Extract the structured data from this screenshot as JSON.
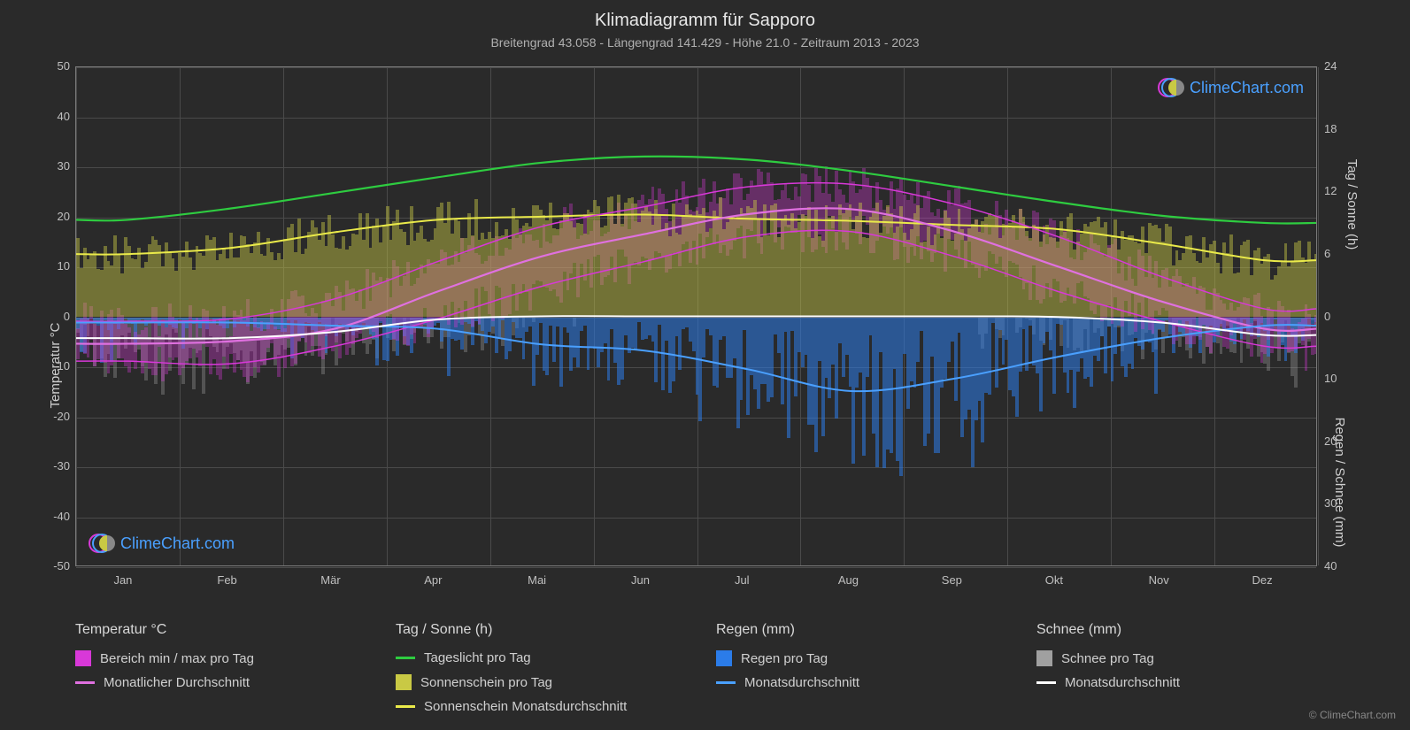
{
  "title": "Klimadiagramm für Sapporo",
  "subtitle": "Breitengrad 43.058 - Längengrad 141.429 - Höhe 21.0 - Zeitraum 2013 - 2023",
  "axis_labels": {
    "left": "Temperatur °C",
    "right_top": "Tag / Sonne (h)",
    "right_bottom": "Regen / Schnee (mm)"
  },
  "months": [
    "Jan",
    "Feb",
    "Mär",
    "Apr",
    "Mai",
    "Jun",
    "Jul",
    "Aug",
    "Sep",
    "Okt",
    "Nov",
    "Dez"
  ],
  "y_left": {
    "min": -50,
    "max": 50,
    "step": 10
  },
  "y_right_hours": {
    "min": 0,
    "max": 24,
    "step": 6,
    "ticks": [
      0,
      6,
      12,
      18,
      24
    ]
  },
  "y_right_precip": {
    "min": 0,
    "max": 40,
    "step": 10,
    "ticks": [
      0,
      10,
      20,
      30,
      40
    ]
  },
  "colors": {
    "background": "#2a2a2a",
    "grid": "#4a4a4a",
    "border": "#7a7a7a",
    "text": "#d0d0d0",
    "temp_range_fill": "#d838d8",
    "temp_avg_line": "#e070e0",
    "daylight_line": "#2ecc40",
    "sunshine_fill": "#c9c944",
    "sunshine_avg_line": "#eaea4a",
    "rain_fill": "#2b7ce9",
    "rain_avg_line": "#4aa0ff",
    "snow_fill": "#a0a0a0",
    "snow_avg_line": "#ffffff",
    "logo_text": "#4aa0ff",
    "logo_ring1": "#d838d8",
    "logo_ring2": "#4aa0ff"
  },
  "series": {
    "daylight_hours_monthly": [
      9.3,
      10.4,
      11.9,
      13.4,
      14.8,
      15.4,
      15.1,
      14.0,
      12.5,
      11.0,
      9.7,
      9.0
    ],
    "sunshine_hours_monthly": [
      6.0,
      6.6,
      8.1,
      9.3,
      9.6,
      9.8,
      9.4,
      9.2,
      8.8,
      8.4,
      7.0,
      5.4
    ],
    "temp_avg_monthly": [
      -5.5,
      -5.0,
      -2.5,
      5.0,
      12.0,
      16.5,
      20.5,
      21.5,
      17.0,
      10.0,
      3.0,
      -2.5
    ],
    "temp_min_monthly": [
      -9.0,
      -9.5,
      -6.0,
      -0.5,
      6.0,
      11.0,
      16.0,
      17.0,
      12.0,
      5.0,
      -1.0,
      -6.0
    ],
    "temp_max_monthly": [
      -1.0,
      -0.5,
      3.5,
      11.0,
      18.0,
      22.0,
      26.0,
      26.5,
      22.5,
      16.0,
      8.0,
      1.5
    ],
    "rain_avg_monthly": [
      1.0,
      1.0,
      1.5,
      2.0,
      4.5,
      5.5,
      8.5,
      12.0,
      10.0,
      6.5,
      3.5,
      1.5
    ],
    "snow_avg_monthly": [
      3.5,
      3.5,
      2.5,
      0.5,
      0.0,
      0.0,
      0.0,
      0.0,
      0.0,
      0.1,
      1.0,
      3.0
    ]
  },
  "daily_variability": {
    "temp_spread": 8,
    "sunshine_spread": 4,
    "rain_spread": 6,
    "snow_spread": 8
  },
  "legend": {
    "cols": [
      {
        "header": "Temperatur °C",
        "items": [
          {
            "type": "box",
            "color": "#d838d8",
            "label": "Bereich min / max pro Tag"
          },
          {
            "type": "line",
            "color": "#e070e0",
            "label": "Monatlicher Durchschnitt"
          }
        ]
      },
      {
        "header": "Tag / Sonne (h)",
        "items": [
          {
            "type": "line",
            "color": "#2ecc40",
            "label": "Tageslicht pro Tag"
          },
          {
            "type": "box",
            "color": "#c9c944",
            "label": "Sonnenschein pro Tag"
          },
          {
            "type": "line",
            "color": "#eaea4a",
            "label": "Sonnenschein Monatsdurchschnitt"
          }
        ]
      },
      {
        "header": "Regen (mm)",
        "items": [
          {
            "type": "box",
            "color": "#2b7ce9",
            "label": "Regen pro Tag"
          },
          {
            "type": "line",
            "color": "#4aa0ff",
            "label": "Monatsdurchschnitt"
          }
        ]
      },
      {
        "header": "Schnee (mm)",
        "items": [
          {
            "type": "box",
            "color": "#a0a0a0",
            "label": "Schnee pro Tag"
          },
          {
            "type": "line",
            "color": "#ffffff",
            "label": "Monatsdurchschnitt"
          }
        ]
      }
    ]
  },
  "logo_text": "ClimeChart.com",
  "copyright": "© ClimeChart.com"
}
